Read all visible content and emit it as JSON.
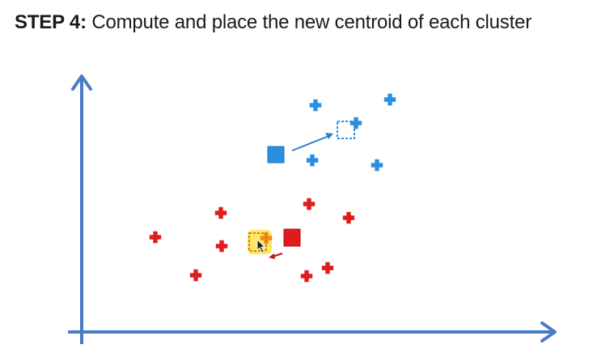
{
  "title": {
    "step": "STEP 4:",
    "text": " Compute and place the new centroid of each cluster"
  },
  "colors": {
    "axis": "#4a7cc2",
    "blue_cluster": "#2b8fe0",
    "red_cluster": "#e01b1b",
    "highlight": "#ffe14d",
    "highlight_point": "#f08a1c",
    "background": "#ffffff"
  },
  "icons": {
    "point": "plus-icon",
    "old_centroid": "square-icon",
    "new_centroid": "dashed-square-icon",
    "move": "arrow-icon",
    "cursor": "mouse-cursor-icon"
  }
}
